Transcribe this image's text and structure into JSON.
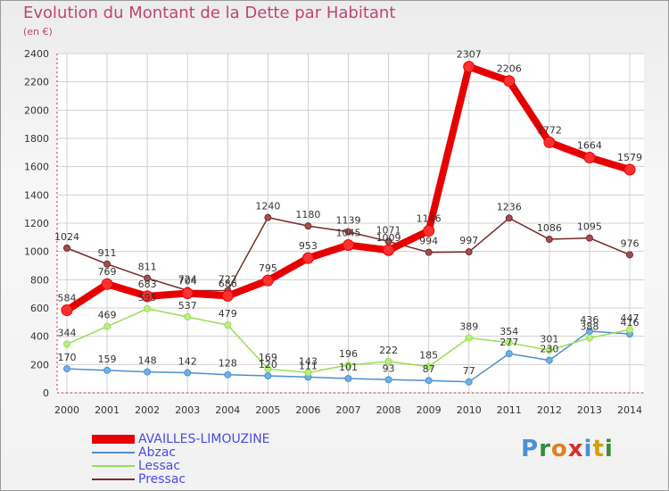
{
  "chart_data": {
    "type": "line",
    "title": "Evolution du Montant de la Dette par Habitant",
    "subtitle": "(en €)",
    "x": [
      "2000",
      "2001",
      "2002",
      "2003",
      "2004",
      "2005",
      "2006",
      "2007",
      "2008",
      "2009",
      "2010",
      "2011",
      "2012",
      "2013",
      "2014"
    ],
    "ylim": [
      0,
      2400
    ],
    "yticks": [
      "0",
      "200",
      "400",
      "600",
      "800",
      "1000",
      "1200",
      "1400",
      "1600",
      "1800",
      "2000",
      "2200",
      "2400"
    ],
    "grid": true,
    "legend_position": "bottom-left",
    "series": [
      {
        "name": "AVAILLES-LIMOUZINE",
        "color": "#e60000",
        "values": [
          584,
          769,
          683,
          704,
          686,
          795,
          953,
          1045,
          1009,
          1146,
          2307,
          2206,
          1772,
          1664,
          1579
        ]
      },
      {
        "name": "Abzac",
        "color": "#4d8fcc",
        "values": [
          170,
          159,
          148,
          142,
          128,
          120,
          111,
          101,
          93,
          87,
          77,
          277,
          230,
          436,
          416
        ]
      },
      {
        "name": "Lessac",
        "color": "#99dd55",
        "values": [
          344,
          469,
          595,
          537,
          479,
          169,
          143,
          196,
          222,
          185,
          389,
          354,
          301,
          388,
          447
        ]
      },
      {
        "name": "Pressac",
        "color": "#7a2a2a",
        "values": [
          1024,
          911,
          811,
          724,
          722,
          1240,
          1180,
          1139,
          1071,
          994,
          997,
          1236,
          1086,
          1095,
          976
        ]
      }
    ]
  },
  "logo": {
    "text": "Proxiti"
  }
}
